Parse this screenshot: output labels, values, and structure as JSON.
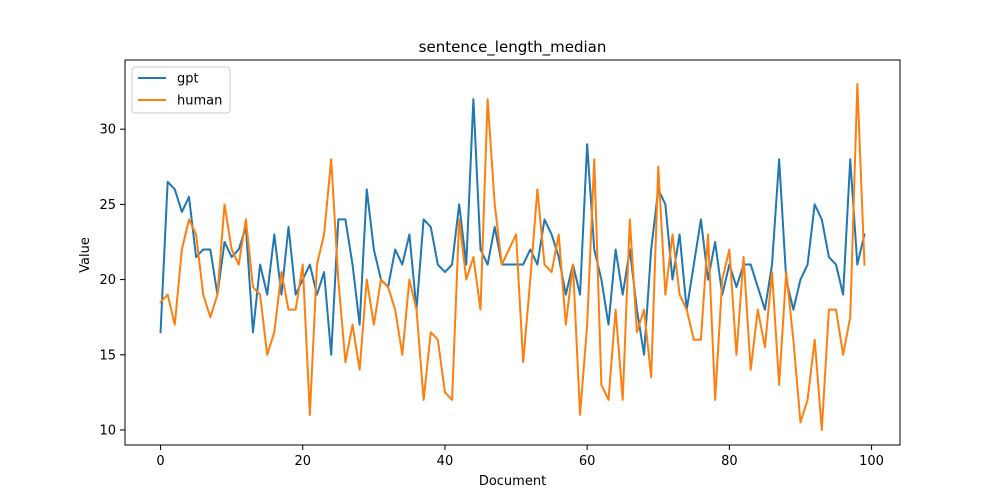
{
  "chart_data": {
    "type": "line",
    "title": "sentence_length_median",
    "xlabel": "Document",
    "ylabel": "Value",
    "xlim": [
      -5,
      104
    ],
    "ylim": [
      9.0,
      34.6
    ],
    "xticks": [
      0,
      20,
      40,
      60,
      80,
      100
    ],
    "yticks": [
      10,
      15,
      20,
      25,
      30
    ],
    "grid": false,
    "legend_position": "upper-left",
    "series": [
      {
        "name": "gpt",
        "color": "#1f77b4",
        "values": [
          16.5,
          26.5,
          26,
          24.5,
          25.5,
          21.5,
          22,
          22,
          19,
          22.5,
          21.5,
          22,
          23.5,
          16.5,
          21,
          19,
          23,
          19,
          23.5,
          19,
          20,
          21,
          19,
          20.5,
          15,
          24,
          24,
          21,
          17,
          26,
          22,
          20,
          19.5,
          22,
          21,
          23,
          18,
          24,
          23.5,
          21,
          20.5,
          21,
          25,
          21,
          32,
          22,
          21,
          23.5,
          21,
          21,
          21,
          21,
          22,
          21,
          24,
          23,
          21.5,
          19,
          21,
          19,
          29,
          22,
          20,
          17,
          22,
          19,
          22,
          18,
          15,
          22,
          26,
          25,
          20,
          23,
          18,
          21,
          24,
          20,
          22.5,
          19,
          21,
          19.5,
          21,
          21,
          19.5,
          18,
          21,
          28,
          20,
          18,
          20,
          21,
          25,
          24,
          21.5,
          21,
          19,
          28,
          21,
          23
        ]
      },
      {
        "name": "human",
        "color": "#ff7f0e",
        "values": [
          18.5,
          19,
          17,
          22,
          24,
          23,
          19,
          17.5,
          19,
          25,
          22,
          21,
          24,
          19.5,
          19,
          15,
          16.5,
          20.5,
          18,
          18,
          21,
          11,
          21,
          23,
          28,
          20,
          14.5,
          17,
          14,
          20,
          17,
          20,
          19.5,
          18,
          15,
          20,
          18,
          12,
          16.5,
          16,
          12.5,
          12,
          24,
          20,
          21.5,
          18,
          32,
          25,
          21,
          22,
          23,
          14.5,
          20,
          26,
          21,
          20.5,
          23,
          17,
          21,
          11,
          17,
          28,
          13,
          12,
          18,
          12,
          24,
          16.5,
          18,
          13.5,
          27.5,
          19,
          23,
          19,
          18,
          16,
          16,
          23,
          12,
          20,
          22,
          15,
          21.5,
          14,
          18,
          15.5,
          20.5,
          13,
          20.5,
          16,
          10.5,
          12,
          16,
          10,
          18,
          18,
          15,
          17.5,
          33,
          21
        ]
      }
    ]
  }
}
